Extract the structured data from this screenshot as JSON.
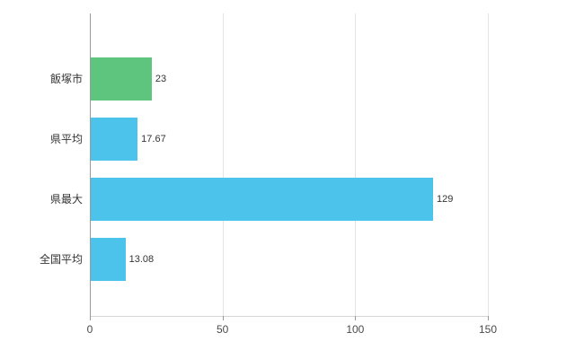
{
  "chart_data": {
    "type": "bar",
    "orientation": "horizontal",
    "title": "",
    "xlabel": "",
    "ylabel": "",
    "categories": [
      "飯塚市",
      "県平均",
      "県最大",
      "全国平均"
    ],
    "values": [
      23,
      17.67,
      129,
      13.08
    ],
    "value_labels": [
      "23",
      "17.67",
      "129",
      "13.08"
    ],
    "bar_colors": [
      "#5ec57e",
      "#4cc3ea",
      "#4cc3ea",
      "#4cc3ea"
    ],
    "xlim": [
      0,
      150
    ],
    "x_ticks": [
      0,
      50,
      100,
      150
    ],
    "grid": true,
    "legend": "none",
    "background_color": "#ffffff",
    "gridline_color": "#e4e4e4",
    "axis_color": "#9a9a9a"
  }
}
